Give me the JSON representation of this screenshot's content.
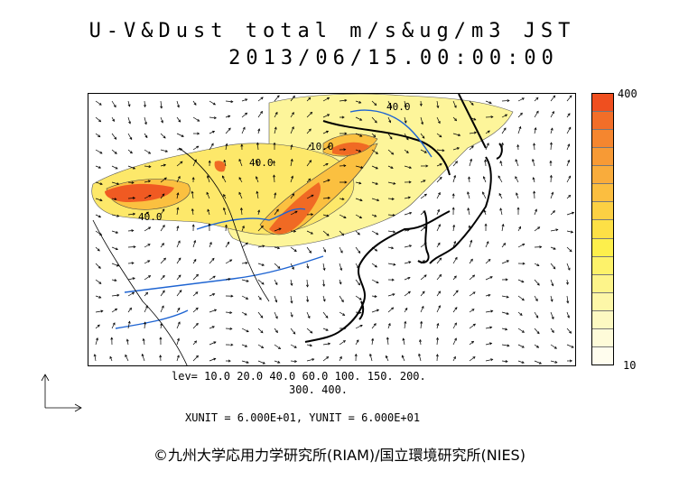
{
  "title": {
    "line1": "U-V&Dust total m/s&ug/m3 JST",
    "line2": "2013/06/15.00:00:00"
  },
  "colorbar": {
    "max_label": "400",
    "min_label": "10",
    "colors": [
      "#ef4f1f",
      "#f26e28",
      "#f5862f",
      "#f79a35",
      "#f9ac3c",
      "#fbbe40",
      "#fcd043",
      "#fde046",
      "#fdef4c",
      "#fdf26a",
      "#fdf48a",
      "#fdf7a8",
      "#fdf9c2",
      "#fefbd9",
      "#fffdee"
    ]
  },
  "contour_labels": [
    "40.0",
    "40.0",
    "40.0",
    "10.0"
  ],
  "levels": {
    "line1": "lev= 10.0 20.0 40.0 60.0 100. 150. 200.",
    "line2": "300. 400."
  },
  "units": "XUNIT = 6.000E+01, YUNIT = 6.000E+01",
  "credit": "©九州大学応用力学研究所(RIAM)/国立環境研究所(NIES)"
}
